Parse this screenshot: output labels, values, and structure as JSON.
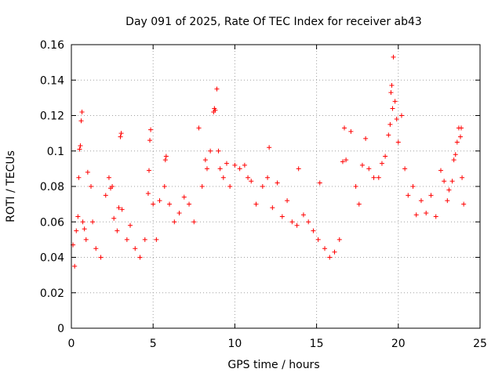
{
  "chart_data": {
    "type": "scatter",
    "title": "Day 091 of 2025, Rate Of TEC Index for receiver ab43",
    "xlabel": "GPS time / hours",
    "ylabel": "ROTI / TECUs",
    "xlim": [
      0,
      25
    ],
    "ylim": [
      0,
      0.16
    ],
    "x_ticks": [
      "0",
      "5",
      "10",
      "15",
      "20",
      "25"
    ],
    "y_ticks": [
      "0",
      "0.02",
      "0.04",
      "0.06",
      "0.08",
      "0.1",
      "0.12",
      "0.14",
      "0.16"
    ],
    "grid": true,
    "marker": "plus",
    "series_color": "#ff0000",
    "series": [
      {
        "points": [
          [
            0.1,
            0.047
          ],
          [
            0.2,
            0.035
          ],
          [
            0.3,
            0.055
          ],
          [
            0.4,
            0.063
          ],
          [
            0.45,
            0.085
          ],
          [
            0.5,
            0.101
          ],
          [
            0.55,
            0.103
          ],
          [
            0.6,
            0.117
          ],
          [
            0.65,
            0.122
          ],
          [
            0.7,
            0.06
          ],
          [
            0.8,
            0.056
          ],
          [
            0.9,
            0.05
          ],
          [
            1.0,
            0.088
          ],
          [
            1.2,
            0.08
          ],
          [
            1.3,
            0.06
          ],
          [
            1.5,
            0.045
          ],
          [
            1.8,
            0.04
          ],
          [
            2.1,
            0.075
          ],
          [
            2.3,
            0.085
          ],
          [
            2.4,
            0.079
          ],
          [
            2.5,
            0.08
          ],
          [
            2.6,
            0.062
          ],
          [
            2.8,
            0.055
          ],
          [
            2.9,
            0.068
          ],
          [
            3.0,
            0.108
          ],
          [
            3.05,
            0.11
          ],
          [
            3.1,
            0.067
          ],
          [
            3.4,
            0.05
          ],
          [
            3.6,
            0.058
          ],
          [
            3.9,
            0.045
          ],
          [
            4.2,
            0.04
          ],
          [
            4.5,
            0.05
          ],
          [
            4.7,
            0.076
          ],
          [
            4.75,
            0.089
          ],
          [
            4.8,
            0.106
          ],
          [
            4.85,
            0.112
          ],
          [
            5.0,
            0.07
          ],
          [
            5.2,
            0.05
          ],
          [
            5.4,
            0.072
          ],
          [
            5.7,
            0.08
          ],
          [
            5.75,
            0.095
          ],
          [
            5.8,
            0.097
          ],
          [
            6.0,
            0.07
          ],
          [
            6.3,
            0.06
          ],
          [
            6.6,
            0.065
          ],
          [
            6.9,
            0.074
          ],
          [
            7.2,
            0.07
          ],
          [
            7.5,
            0.06
          ],
          [
            7.8,
            0.113
          ],
          [
            8.0,
            0.08
          ],
          [
            8.2,
            0.095
          ],
          [
            8.3,
            0.09
          ],
          [
            8.5,
            0.1
          ],
          [
            8.7,
            0.122
          ],
          [
            8.75,
            0.124
          ],
          [
            8.8,
            0.123
          ],
          [
            8.9,
            0.135
          ],
          [
            9.0,
            0.1
          ],
          [
            9.1,
            0.09
          ],
          [
            9.3,
            0.085
          ],
          [
            9.5,
            0.093
          ],
          [
            9.7,
            0.08
          ],
          [
            10.0,
            0.092
          ],
          [
            10.3,
            0.09
          ],
          [
            10.6,
            0.092
          ],
          [
            10.8,
            0.085
          ],
          [
            11.0,
            0.083
          ],
          [
            11.3,
            0.07
          ],
          [
            11.7,
            0.08
          ],
          [
            12.0,
            0.085
          ],
          [
            12.1,
            0.102
          ],
          [
            12.3,
            0.068
          ],
          [
            12.6,
            0.082
          ],
          [
            12.9,
            0.063
          ],
          [
            13.2,
            0.072
          ],
          [
            13.5,
            0.06
          ],
          [
            13.8,
            0.058
          ],
          [
            13.9,
            0.09
          ],
          [
            14.2,
            0.064
          ],
          [
            14.5,
            0.06
          ],
          [
            14.8,
            0.055
          ],
          [
            15.1,
            0.05
          ],
          [
            15.2,
            0.082
          ],
          [
            15.5,
            0.045
          ],
          [
            15.8,
            0.04
          ],
          [
            16.1,
            0.043
          ],
          [
            16.4,
            0.05
          ],
          [
            16.6,
            0.094
          ],
          [
            16.7,
            0.113
          ],
          [
            16.8,
            0.095
          ],
          [
            17.1,
            0.111
          ],
          [
            17.4,
            0.08
          ],
          [
            17.6,
            0.07
          ],
          [
            17.8,
            0.092
          ],
          [
            18.0,
            0.107
          ],
          [
            18.2,
            0.09
          ],
          [
            18.5,
            0.085
          ],
          [
            18.8,
            0.085
          ],
          [
            19.0,
            0.093
          ],
          [
            19.2,
            0.097
          ],
          [
            19.4,
            0.109
          ],
          [
            19.5,
            0.115
          ],
          [
            19.55,
            0.133
          ],
          [
            19.6,
            0.137
          ],
          [
            19.65,
            0.124
          ],
          [
            19.7,
            0.153
          ],
          [
            19.8,
            0.128
          ],
          [
            19.9,
            0.118
          ],
          [
            20.0,
            0.105
          ],
          [
            20.2,
            0.12
          ],
          [
            20.4,
            0.09
          ],
          [
            20.6,
            0.075
          ],
          [
            20.9,
            0.08
          ],
          [
            21.1,
            0.064
          ],
          [
            21.4,
            0.072
          ],
          [
            21.7,
            0.065
          ],
          [
            22.0,
            0.075
          ],
          [
            22.3,
            0.063
          ],
          [
            22.6,
            0.089
          ],
          [
            22.8,
            0.083
          ],
          [
            23.0,
            0.072
          ],
          [
            23.1,
            0.078
          ],
          [
            23.3,
            0.083
          ],
          [
            23.4,
            0.095
          ],
          [
            23.5,
            0.098
          ],
          [
            23.6,
            0.105
          ],
          [
            23.7,
            0.113
          ],
          [
            23.8,
            0.108
          ],
          [
            23.85,
            0.113
          ],
          [
            23.9,
            0.085
          ],
          [
            24.0,
            0.07
          ]
        ]
      }
    ]
  }
}
